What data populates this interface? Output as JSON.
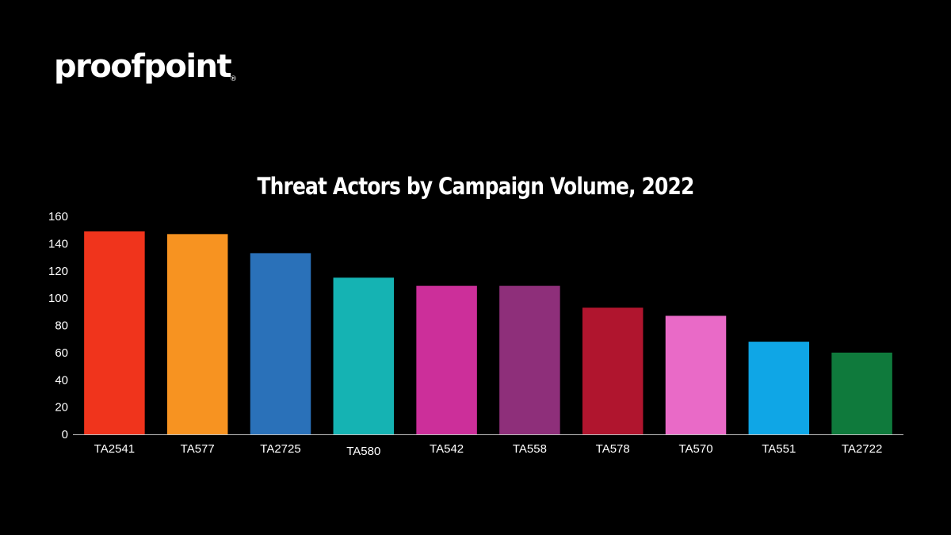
{
  "brand": {
    "name": "proofpoint",
    "mark": "®"
  },
  "chart_data": {
    "type": "bar",
    "title": "Threat Actors by Campaign Volume, 2022",
    "xlabel": "",
    "ylabel": "",
    "categories": [
      "TA2541",
      "TA577",
      "TA2725",
      "TA580",
      "TA542",
      "TA558",
      "TA578",
      "TA570",
      "TA551",
      "TA2722"
    ],
    "values": [
      149,
      147,
      133,
      115,
      109,
      109,
      93,
      87,
      68,
      60
    ],
    "colors": [
      "#f0341c",
      "#f79321",
      "#2a71b9",
      "#15b3b3",
      "#cc2f9a",
      "#8e2f7a",
      "#b0152e",
      "#e96ac7",
      "#0fa6e6",
      "#0f7a3c"
    ],
    "ylim": [
      0,
      160
    ],
    "yticks": [
      0,
      20,
      40,
      60,
      80,
      100,
      120,
      140,
      160
    ],
    "grid": false,
    "legend": "none"
  }
}
